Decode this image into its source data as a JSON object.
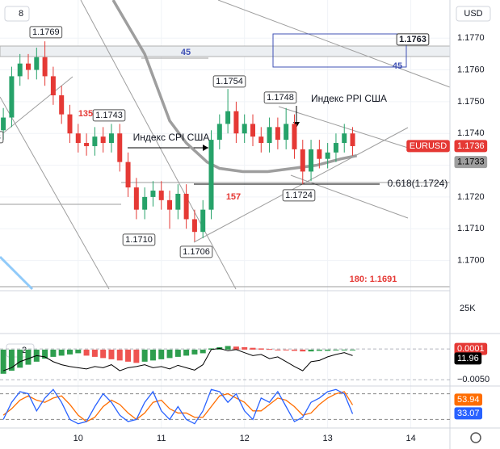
{
  "chart_data": [
    {
      "type": "candlestick",
      "symbol": "EURUSD",
      "currency": "USD",
      "badge": "8",
      "volume_label": "25K",
      "up_color": "#26a269",
      "down_color": "#e53935",
      "x": [
        9.1,
        9.2,
        9.3,
        9.4,
        9.5,
        9.6,
        9.7,
        9.8,
        9.9,
        10.0,
        10.1,
        10.2,
        10.3,
        10.4,
        10.5,
        10.6,
        10.7,
        10.8,
        10.9,
        11.0,
        11.1,
        11.2,
        11.3,
        11.4,
        11.5,
        11.6,
        11.7,
        11.8,
        11.9,
        12.0,
        12.1,
        12.2,
        12.3,
        12.4,
        12.5,
        12.6,
        12.7,
        12.8,
        12.9,
        13.0,
        13.1,
        13.2,
        13.3
      ],
      "open": [
        1.1741,
        1.1745,
        1.1758,
        1.1762,
        1.176,
        1.1764,
        1.1758,
        1.1752,
        1.1746,
        1.174,
        1.1737,
        1.1736,
        1.1739,
        1.1737,
        1.174,
        1.1731,
        1.1723,
        1.1716,
        1.172,
        1.1722,
        1.1719,
        1.1716,
        1.1721,
        1.1713,
        1.1709,
        1.1716,
        1.1738,
        1.1743,
        1.1747,
        1.174,
        1.1743,
        1.1739,
        1.1737,
        1.1742,
        1.1738,
        1.1743,
        1.1735,
        1.1728,
        1.1735,
        1.1732,
        1.1734,
        1.1737,
        1.174
      ],
      "high": [
        1.1748,
        1.1761,
        1.1765,
        1.1765,
        1.1767,
        1.1769,
        1.1761,
        1.1755,
        1.1749,
        1.1743,
        1.174,
        1.1742,
        1.1742,
        1.1743,
        1.1743,
        1.1734,
        1.1726,
        1.1723,
        1.1725,
        1.1725,
        1.1722,
        1.1724,
        1.1724,
        1.1716,
        1.1719,
        1.1741,
        1.1746,
        1.1754,
        1.175,
        1.1746,
        1.1746,
        1.1742,
        1.1745,
        1.1745,
        1.1748,
        1.1746,
        1.1738,
        1.1738,
        1.1738,
        1.1737,
        1.174,
        1.1743,
        1.1742
      ],
      "low": [
        1.1738,
        1.1742,
        1.1755,
        1.1757,
        1.1757,
        1.1755,
        1.1749,
        1.1743,
        1.1737,
        1.1734,
        1.1733,
        1.1733,
        1.1734,
        1.1734,
        1.1728,
        1.172,
        1.1713,
        1.1713,
        1.1717,
        1.1716,
        1.171,
        1.1713,
        1.171,
        1.1706,
        1.1707,
        1.1713,
        1.1735,
        1.174,
        1.1737,
        1.1737,
        1.1736,
        1.1734,
        1.1734,
        1.1735,
        1.1735,
        1.1732,
        1.1724,
        1.1725,
        1.1729,
        1.1729,
        1.1731,
        1.1734,
        1.1733
      ],
      "close": [
        1.1745,
        1.1758,
        1.1762,
        1.176,
        1.1764,
        1.1758,
        1.1752,
        1.1746,
        1.174,
        1.1737,
        1.1736,
        1.1739,
        1.1737,
        1.174,
        1.1731,
        1.1723,
        1.1716,
        1.172,
        1.1722,
        1.1719,
        1.1716,
        1.1721,
        1.1713,
        1.1709,
        1.1716,
        1.1738,
        1.1743,
        1.1747,
        1.174,
        1.1743,
        1.1739,
        1.1737,
        1.1742,
        1.1738,
        1.1743,
        1.1735,
        1.1728,
        1.1735,
        1.1732,
        1.1734,
        1.1737,
        1.174,
        1.1736
      ],
      "overlay": {
        "color": "#9e9e9e",
        "x": [
          10.42,
          10.8,
          11.1,
          11.3,
          11.55,
          11.7,
          11.98,
          12.28,
          12.58,
          12.87,
          13.16,
          13.35
        ],
        "values": [
          1.1782,
          1.1765,
          1.1744,
          1.1737,
          1.1731,
          1.1729,
          1.1728,
          1.1728,
          1.1729,
          1.173,
          1.1732,
          1.1733
        ]
      },
      "xlim": [
        9.06,
        14.47
      ],
      "xticks": [
        10,
        11,
        12,
        13,
        14
      ],
      "ylim": [
        1.1691,
        1.1782
      ],
      "yticks": [
        {
          "value": 1.17,
          "label": "1.1700"
        },
        {
          "value": 1.171,
          "label": "1.1710"
        },
        {
          "value": 1.172,
          "label": "1.1720"
        },
        {
          "value": 1.173,
          "label": "1.1730"
        },
        {
          "value": 1.174,
          "label": "1.1740"
        },
        {
          "value": 1.175,
          "label": "1.1750"
        },
        {
          "value": 1.176,
          "label": "1.1760"
        },
        {
          "value": 1.177,
          "label": "1.1770"
        }
      ],
      "grid": true,
      "annotations": [
        "1.1769",
        "1.1743",
        "1.1743",
        "1.1754",
        "1.1748",
        "1.1710",
        "1.1706",
        "1.1724",
        "Индекс CPI США",
        "Индекс PPI США",
        "0.618(1.1724)",
        "45",
        "45",
        "135",
        "157",
        "180: 1.1691",
        "1.1763"
      ]
    },
    {
      "type": "macd",
      "badge": "2",
      "line_label": "11.96",
      "ylim": [
        -0.0059,
        0.0024
      ],
      "yticks": [
        0.0001,
        {
          "value": -0.005,
          "label": "−0.0050"
        }
      ],
      "series": [
        {
          "kind": "histogram",
          "color": "#2e9e4e",
          "down_color": "#ef5350",
          "values": [
            -0.004,
            -0.0035,
            -0.003,
            -0.0025,
            -0.002,
            -0.0015,
            -0.0012,
            -0.001,
            -0.0008,
            -0.0006,
            -0.001,
            -0.0012,
            -0.0014,
            -0.0016,
            -0.0018,
            -0.002,
            -0.0022,
            -0.002,
            -0.0018,
            -0.0016,
            -0.0014,
            -0.0012,
            -0.001,
            -0.0008,
            -0.0006,
            0.0002,
            0.0004,
            0.0006,
            0.0005,
            0.0004,
            0.0003,
            0.0002,
            0.0001,
            0.0,
            -0.0001,
            -0.0002,
            -0.0003,
            -0.0003,
            -0.0002,
            -0.0002,
            -0.0001,
            -0.0001,
            0.0
          ]
        },
        {
          "kind": "line",
          "color": "#000000",
          "values": [
            -0.0035,
            -0.003,
            -0.002,
            -0.0015,
            -0.001,
            -0.0012,
            -0.002,
            -0.0025,
            -0.0028,
            -0.003,
            -0.0032,
            -0.0028,
            -0.003,
            -0.0025,
            -0.0035,
            -0.003,
            -0.0028,
            -0.0025,
            -0.003,
            -0.0028,
            -0.0032,
            -0.0026,
            -0.003,
            -0.0034,
            -0.0025,
            0.0,
            0.0002,
            -0.0002,
            0.0,
            -0.0005,
            -0.001,
            -0.0008,
            -0.0015,
            -0.0012,
            -0.002,
            -0.0028,
            -0.0035,
            -0.002,
            -0.0018,
            -0.0012,
            -0.0008,
            -0.0005,
            -0.001
          ]
        }
      ]
    },
    {
      "type": "stochastic",
      "ylim": [
        0,
        100
      ],
      "levels": [
        80,
        20
      ],
      "series": [
        {
          "color": "#2962ff",
          "values": [
            20,
            60,
            85,
            80,
            40,
            70,
            90,
            60,
            20,
            10,
            15,
            50,
            80,
            60,
            30,
            15,
            20,
            60,
            85,
            40,
            20,
            50,
            20,
            10,
            40,
            90,
            85,
            60,
            80,
            40,
            20,
            70,
            60,
            85,
            50,
            15,
            25,
            60,
            70,
            85,
            90,
            80,
            33.07
          ]
        },
        {
          "color": "#ff6d00",
          "values": [
            30,
            45,
            65,
            75,
            65,
            60,
            70,
            75,
            55,
            30,
            15,
            25,
            50,
            65,
            55,
            35,
            20,
            35,
            60,
            65,
            45,
            35,
            35,
            25,
            25,
            50,
            75,
            80,
            70,
            60,
            40,
            40,
            55,
            70,
            65,
            50,
            30,
            35,
            55,
            70,
            80,
            85,
            53.94
          ]
        }
      ]
    }
  ]
}
